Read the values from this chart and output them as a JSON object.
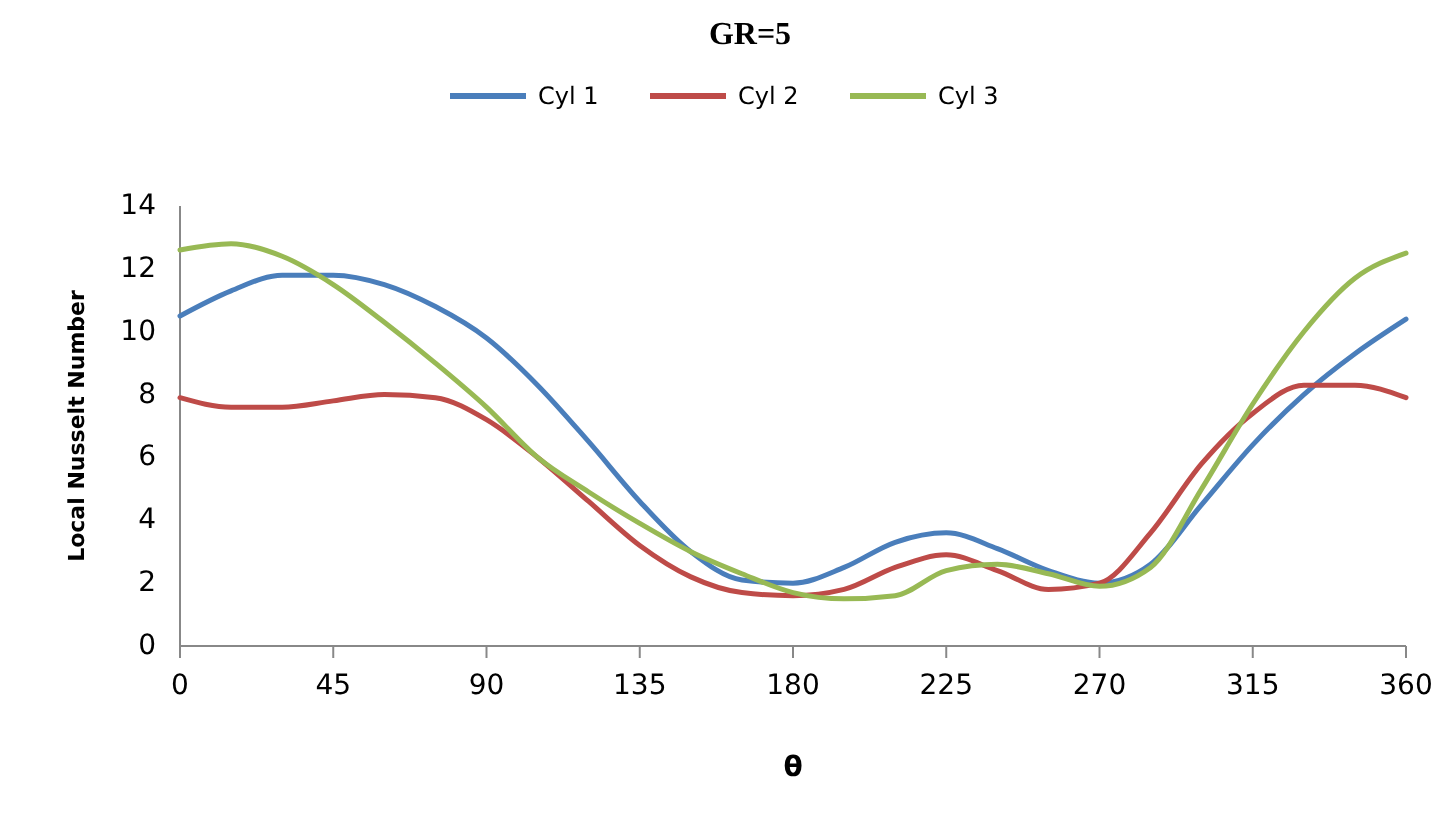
{
  "chart_data": {
    "type": "line",
    "title": "GR=5",
    "xlabel": "θ",
    "ylabel": "Local Nusselt Number",
    "x": [
      0,
      15,
      30,
      45,
      60,
      75,
      90,
      105,
      120,
      135,
      150,
      165,
      180,
      195,
      210,
      225,
      240,
      255,
      270,
      285,
      300,
      315,
      330,
      345,
      360
    ],
    "series": [
      {
        "name": "Cyl 1",
        "color": "#4a7ebb",
        "values": [
          10.5,
          11.3,
          11.8,
          11.8,
          11.5,
          10.8,
          9.8,
          8.3,
          6.5,
          4.6,
          3.0,
          2.1,
          2.0,
          2.5,
          3.3,
          3.6,
          3.1,
          2.4,
          2.0,
          2.6,
          4.5,
          6.4,
          8.0,
          9.3,
          10.4
        ]
      },
      {
        "name": "Cyl 2",
        "color": "#be4b48",
        "values": [
          7.9,
          7.6,
          7.6,
          7.8,
          8.0,
          7.9,
          7.2,
          6.0,
          4.6,
          3.2,
          2.2,
          1.7,
          1.6,
          1.8,
          2.5,
          2.9,
          2.4,
          1.8,
          2.0,
          3.6,
          5.8,
          7.4,
          8.3,
          8.3,
          7.9
        ]
      },
      {
        "name": "Cyl 3",
        "color": "#98b954",
        "values": [
          12.6,
          12.8,
          12.4,
          11.5,
          10.3,
          9.0,
          7.6,
          6.0,
          4.9,
          3.9,
          3.0,
          2.3,
          1.7,
          1.5,
          1.6,
          2.4,
          2.6,
          2.3,
          1.9,
          2.5,
          5.0,
          7.7,
          10.0,
          11.7,
          12.5
        ]
      }
    ],
    "xlim": [
      0,
      360
    ],
    "xticks": [
      0,
      45,
      90,
      135,
      180,
      225,
      270,
      315,
      360
    ],
    "ylim": [
      0,
      14
    ],
    "yticks": [
      0,
      2,
      4,
      6,
      8,
      10,
      12,
      14
    ],
    "legend": "top",
    "grid": false,
    "marker": "none",
    "line_style": "solid"
  }
}
